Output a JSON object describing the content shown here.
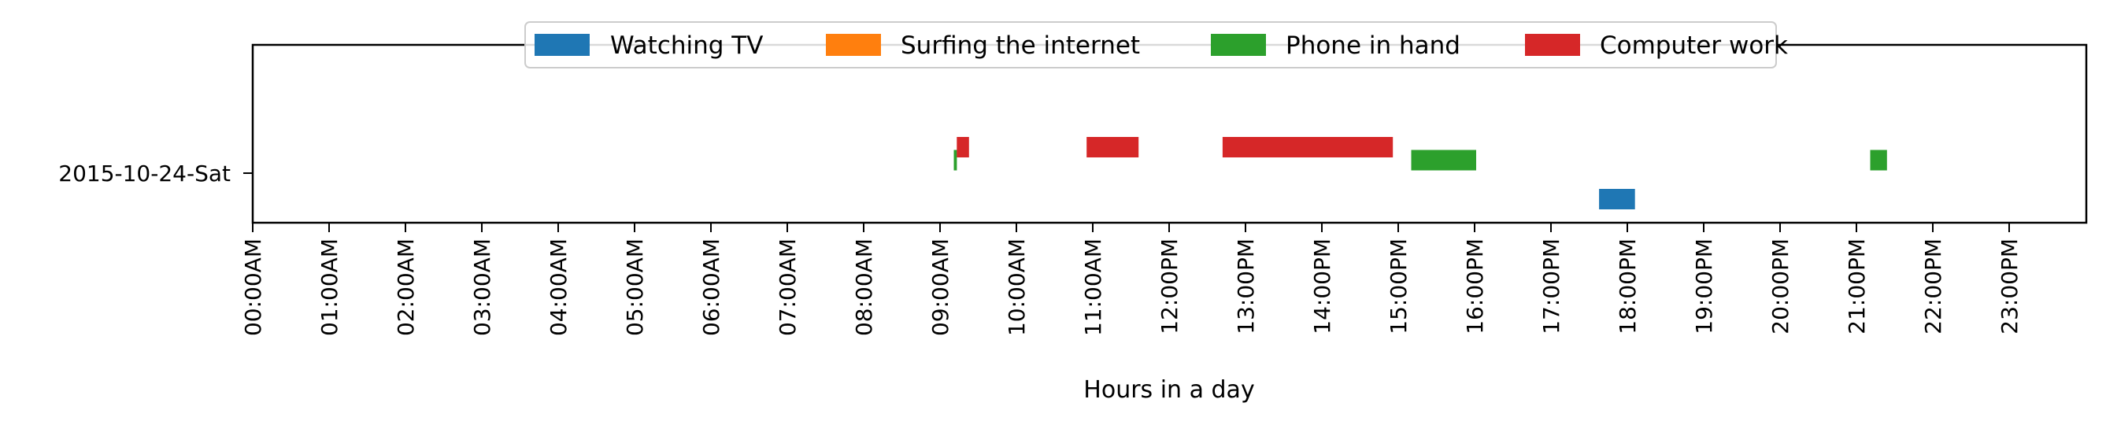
{
  "chart_data": {
    "type": "broken-bar",
    "xlabel": "Hours in a day",
    "xlim": [
      0,
      24
    ],
    "x_tick_labels": [
      "00:00AM",
      "01:00AM",
      "02:00AM",
      "03:00AM",
      "04:00AM",
      "05:00AM",
      "06:00AM",
      "07:00AM",
      "08:00AM",
      "09:00AM",
      "10:00AM",
      "11:00AM",
      "12:00PM",
      "13:00PM",
      "14:00PM",
      "15:00PM",
      "16:00PM",
      "17:00PM",
      "18:00PM",
      "19:00PM",
      "20:00PM",
      "21:00PM",
      "22:00PM",
      "23:00PM"
    ],
    "categories": [
      "2015-10-24-Sat"
    ],
    "legend_position": "top-center",
    "series": [
      {
        "name": "Watching TV",
        "color": "#1f77b4",
        "offset": -1,
        "intervals": [
          [
            17.63,
            18.1
          ]
        ]
      },
      {
        "name": "Surfing the internet",
        "color": "#ff7f0e",
        "offset": 0,
        "intervals": []
      },
      {
        "name": "Phone in hand",
        "color": "#2ca02c",
        "offset": 0.5,
        "intervals": [
          [
            9.18,
            9.22
          ],
          [
            15.17,
            16.02
          ],
          [
            21.18,
            21.4
          ]
        ]
      },
      {
        "name": "Computer work",
        "color": "#d62728",
        "offset": 1,
        "intervals": [
          [
            9.22,
            9.38
          ],
          [
            10.92,
            11.6
          ],
          [
            12.7,
            14.93
          ]
        ]
      }
    ]
  }
}
